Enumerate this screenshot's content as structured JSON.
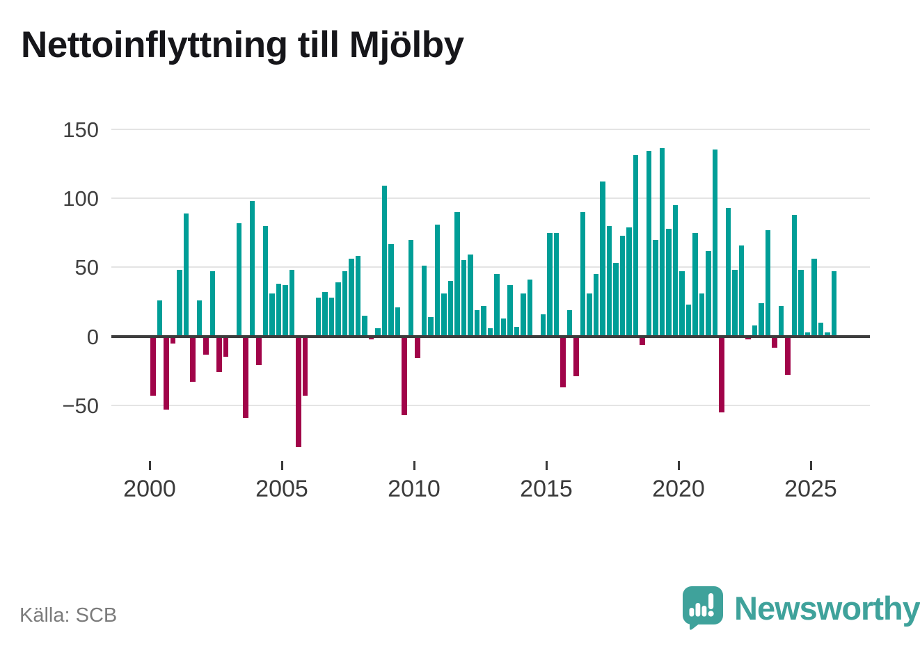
{
  "header": {
    "title": "Nettoinflyttning till Mjölby"
  },
  "footer": {
    "source": "Källa: SCB",
    "brand": "Newsworthy"
  },
  "icons": {
    "logo_mark": "speech-bubble-bar-chart-exclamation"
  },
  "colors": {
    "positive_bar": "#009e97",
    "negative_bar": "#a10449",
    "grid": "#e4e4e4",
    "zero_line": "#3d3d3d",
    "axis_text": "#3a3a3a",
    "y_axis_text": "#3f3f3f",
    "title_text": "#16161a",
    "source_text": "#7b7b7b",
    "logo": "#3fa29b",
    "background": "#ffffff"
  },
  "chart_data": {
    "type": "bar",
    "title": "Nettoinflyttning till Mjölby",
    "frequency": "quarterly",
    "start_year": 2000,
    "start_quarter": 1,
    "values": [
      -43,
      26,
      -53,
      -5,
      48,
      89,
      -33,
      26,
      -13,
      47,
      -26,
      -15,
      0,
      82,
      -59,
      98,
      -21,
      80,
      31,
      38,
      37,
      48,
      -80,
      -43,
      0,
      28,
      32,
      28,
      39,
      47,
      56,
      58,
      15,
      -2,
      6,
      109,
      67,
      21,
      -57,
      70,
      -16,
      51,
      14,
      81,
      31,
      40,
      90,
      55,
      59,
      19,
      22,
      6,
      45,
      13,
      37,
      7,
      31,
      41,
      0,
      16,
      75,
      75,
      -37,
      19,
      -29,
      90,
      31,
      45,
      112,
      80,
      53,
      73,
      79,
      131,
      -6,
      134,
      70,
      136,
      78,
      95,
      47,
      23,
      75,
      31,
      62,
      135,
      -55,
      93,
      48,
      66,
      -2,
      8,
      24,
      77,
      -8,
      22,
      -28,
      88,
      48,
      3,
      56,
      10,
      3,
      47
    ],
    "y_ticks": [
      150,
      100,
      50,
      0,
      -50
    ],
    "x_ticks": [
      2000,
      2005,
      2010,
      2015,
      2020,
      2025
    ],
    "ylim": [
      -89,
      158
    ],
    "grid": true,
    "legend": false,
    "xlabel": "",
    "ylabel": ""
  }
}
